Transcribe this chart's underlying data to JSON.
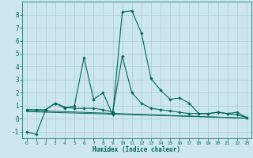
{
  "xlabel": "Humidex (Indice chaleur)",
  "bg_color": "#cce8ee",
  "grid_color": "#aacccc",
  "line_color": "#006655",
  "xlim": [
    -0.5,
    23.5
  ],
  "ylim": [
    -1.5,
    9.0
  ],
  "yticks": [
    -1,
    0,
    1,
    2,
    3,
    4,
    5,
    6,
    7,
    8
  ],
  "xticks": [
    0,
    1,
    2,
    3,
    4,
    5,
    6,
    7,
    8,
    9,
    10,
    11,
    12,
    13,
    14,
    15,
    16,
    17,
    18,
    19,
    20,
    21,
    22,
    23
  ],
  "series": [
    {
      "x": [
        0,
        1,
        2,
        3,
        4,
        5,
        6,
        7,
        8,
        9,
        10,
        11,
        12,
        13,
        14,
        15,
        16,
        17,
        18,
        19,
        20,
        21,
        22,
        23
      ],
      "y": [
        -1.0,
        -1.2,
        0.7,
        1.2,
        0.8,
        1.0,
        4.7,
        1.5,
        2.0,
        0.3,
        8.2,
        8.3,
        6.6,
        3.1,
        2.2,
        1.5,
        1.6,
        1.2,
        0.4,
        0.4,
        0.5,
        0.4,
        0.3,
        0.1
      ],
      "has_markers": true
    },
    {
      "x": [
        0,
        1,
        2,
        3,
        4,
        5,
        6,
        7,
        8,
        9,
        10,
        11,
        12,
        13,
        14,
        15,
        16,
        17,
        18,
        19,
        20,
        21,
        22,
        23
      ],
      "y": [
        0.7,
        0.7,
        0.7,
        1.2,
        0.9,
        0.8,
        0.8,
        0.8,
        0.7,
        0.5,
        4.8,
        2.0,
        1.2,
        0.8,
        0.7,
        0.6,
        0.5,
        0.4,
        0.4,
        0.4,
        0.5,
        0.4,
        0.5,
        0.1
      ],
      "has_markers": true
    },
    {
      "x": [
        0,
        23
      ],
      "y": [
        0.65,
        0.05
      ],
      "has_markers": false
    },
    {
      "x": [
        0,
        23
      ],
      "y": [
        0.55,
        0.05
      ],
      "has_markers": false
    }
  ]
}
